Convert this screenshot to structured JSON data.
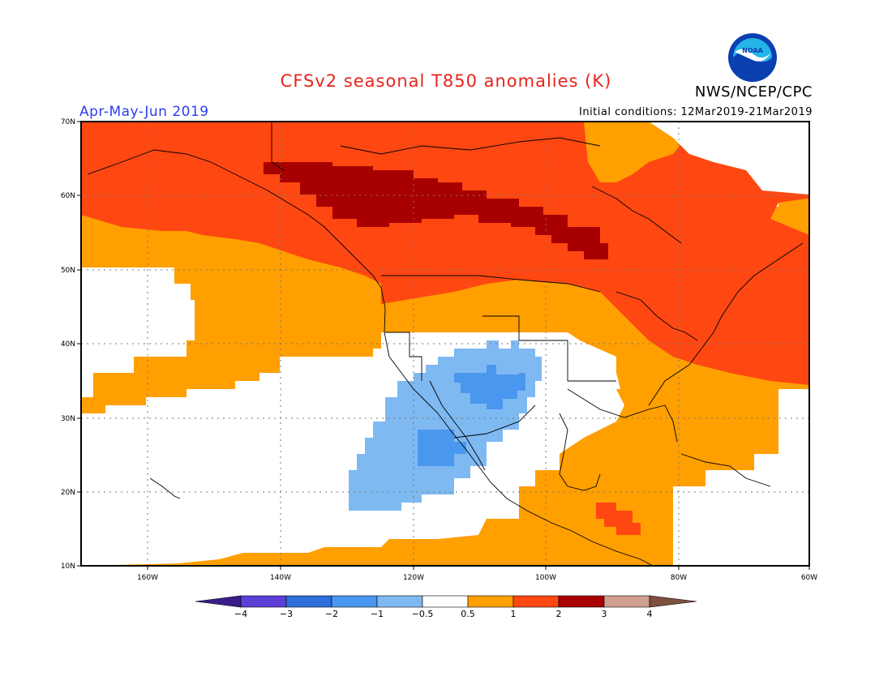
{
  "title": "CFSv2 seasonal T850 anomalies (K)",
  "season": "Apr-May-Jun 2019",
  "initial_conditions": "Initial conditions: 12Mar2019-21Mar2019",
  "agency": "NWS/NCEP/CPC",
  "logo": {
    "text": "NOAA",
    "icon": "noaa-logo-icon",
    "colors": {
      "ring": "#0a3fb0",
      "sky": "#23b5e8",
      "bird": "#ffffff"
    }
  },
  "map": {
    "region": "North America",
    "lon_range": [
      -172,
      -60
    ],
    "lat_range": [
      10,
      70
    ],
    "lon_ticks": [
      "160W",
      "140W",
      "120W",
      "100W",
      "80W",
      "60W"
    ],
    "lat_ticks": [
      "10N",
      "20N",
      "30N",
      "40N",
      "50N",
      "60N",
      "70N"
    ]
  },
  "colorbar": {
    "labels": [
      "-4",
      "-3",
      "-2",
      "-1",
      "-0.5",
      "0.5",
      "1",
      "2",
      "3",
      "4"
    ],
    "colors": [
      "#3a1d8a",
      "#5b3fd6",
      "#2e6fdb",
      "#4a97ef",
      "#7fb9f2",
      "#ffffff",
      "#ff9f00",
      "#ff4712",
      "#a80000",
      "#d0a08f",
      "#7e5040"
    ]
  }
}
